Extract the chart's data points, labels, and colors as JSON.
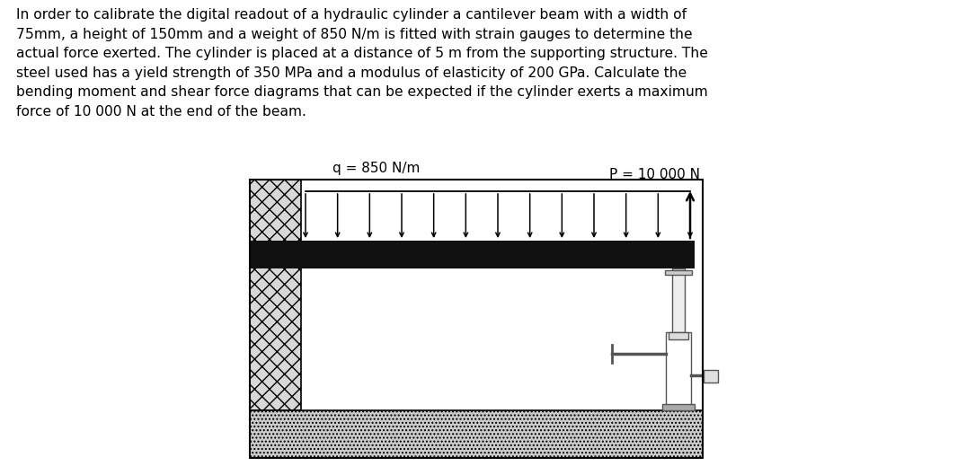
{
  "text_paragraph": "In order to calibrate the digital readout of a hydraulic cylinder a cantilever beam with a width of\n75mm, a height of 150mm and a weight of 850 N/m is fitted with strain gauges to determine the\nactual force exerted. The cylinder is placed at a distance of 5 m from the supporting structure. The\nsteel used has a yield strength of 350 MPa and a modulus of elasticity of 200 GPa. Calculate the\nbending moment and shear force diagrams that can be expected if the cylinder exerts a maximum\nforce of 10 000 N at the end of the beam.",
  "label_q": "q = 850 N/m",
  "label_P": "P = 10 000 N",
  "bg_color": "#ffffff",
  "arrow_color": "#000000",
  "text_fontsize": 11.2,
  "label_fontsize": 11,
  "fig_width": 10.75,
  "fig_height": 5.29,
  "wall_hatch": "xx",
  "ground_hatch": "....",
  "wall_facecolor": "#d8d8d8",
  "ground_facecolor": "#cccccc",
  "beam_facecolor": "#111111"
}
